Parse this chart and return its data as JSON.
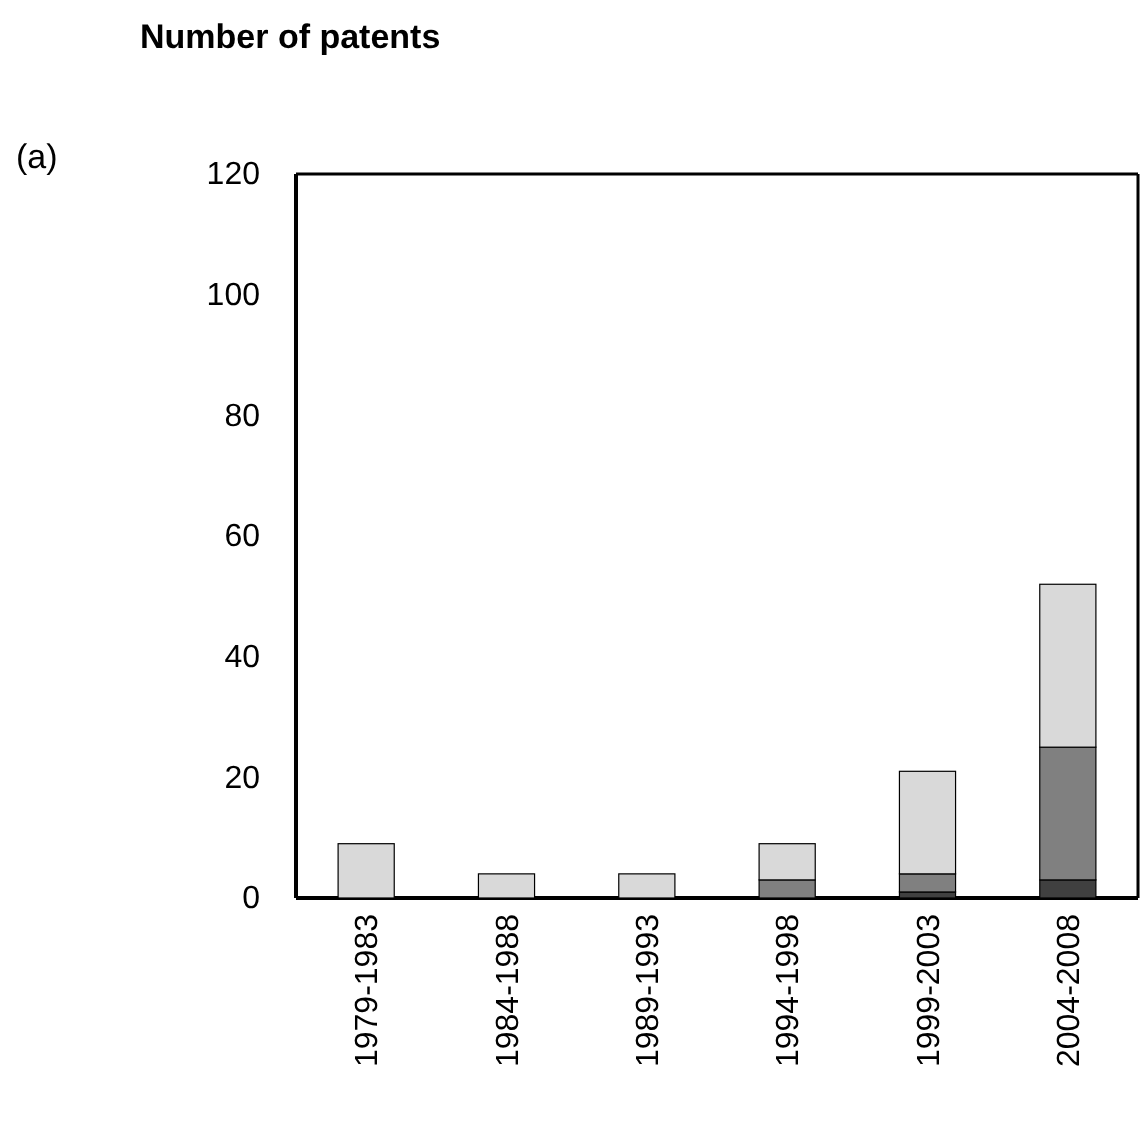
{
  "chart_data": {
    "type": "bar",
    "title": "Number of patents",
    "annotations": [
      "(a)"
    ],
    "categories": [
      "1979-1983",
      "1984-1988",
      "1989-1993",
      "1994-1998",
      "1999-2003",
      "2004-2008"
    ],
    "stacked": true,
    "series": [
      {
        "color": "#404040",
        "values": [
          0,
          0,
          0,
          0,
          1,
          3
        ]
      },
      {
        "color": "#808080",
        "values": [
          0,
          0,
          0,
          3,
          3,
          22
        ]
      },
      {
        "color": "#d9d9d9",
        "values": [
          9,
          4,
          4,
          6,
          17,
          27
        ]
      }
    ],
    "ylim": [
      0,
      120
    ],
    "yticks": [
      0,
      20,
      40,
      60,
      80,
      100,
      120
    ],
    "grid": false
  }
}
